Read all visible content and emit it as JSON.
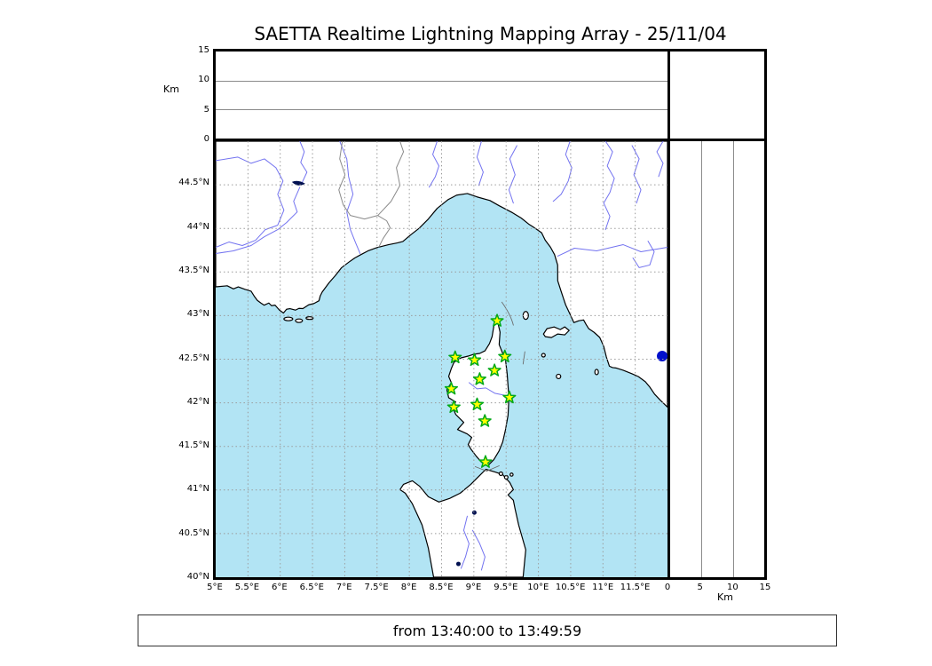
{
  "title": "SAETTA Realtime Lightning Mapping Array - 25/11/04",
  "footer": {
    "text": "from 13:40:00 to 13:49:59"
  },
  "altitude_panel": {
    "unit_label": "Km",
    "ticks": [
      "0",
      "5",
      "10",
      "15"
    ],
    "range_km": [
      0,
      15
    ],
    "gridlines_km": [
      5,
      10
    ]
  },
  "right_panel": {
    "unit_label": "Km",
    "ticks": [
      "0",
      "5",
      "10",
      "15"
    ],
    "range_km": [
      0,
      15
    ],
    "gridlines_km": [
      5,
      10
    ]
  },
  "map": {
    "lon_range": [
      5,
      12
    ],
    "lat_range": [
      40,
      45
    ],
    "lon_ticks": [
      "5°E",
      "5.5°E",
      "6°E",
      "6.5°E",
      "7°E",
      "7.5°E",
      "8°E",
      "8.5°E",
      "9°E",
      "9.5°E",
      "10°E",
      "10.5°E",
      "11°E",
      "11.5°E"
    ],
    "lat_ticks": [
      "44.5°N",
      "44°N",
      "43.5°N",
      "43°N",
      "42.5°N",
      "42°N",
      "41.5°N",
      "41°N",
      "40.5°N",
      "40°N"
    ],
    "stations": [
      {
        "lon": 9.36,
        "lat": 42.94
      },
      {
        "lon": 8.71,
        "lat": 42.52
      },
      {
        "lon": 9.01,
        "lat": 42.49
      },
      {
        "lon": 9.48,
        "lat": 42.53
      },
      {
        "lon": 9.32,
        "lat": 42.37
      },
      {
        "lon": 9.09,
        "lat": 42.27
      },
      {
        "lon": 8.65,
        "lat": 42.16
      },
      {
        "lon": 9.55,
        "lat": 42.06
      },
      {
        "lon": 8.69,
        "lat": 41.95
      },
      {
        "lon": 9.05,
        "lat": 41.98
      },
      {
        "lon": 9.17,
        "lat": 41.79
      },
      {
        "lon": 9.18,
        "lat": 41.32
      }
    ]
  },
  "colors": {
    "sea": "#b2e4f4",
    "land": "#ffffff",
    "coastline": "#000000",
    "river": "#7373f0",
    "border": "#8a8a8a",
    "grid": "#9a9a9a",
    "lake": "#001050",
    "lake_bright": "#0010cc",
    "star_fill": "#ffff00",
    "star_stroke": "#00a818",
    "frame": "#000000"
  }
}
